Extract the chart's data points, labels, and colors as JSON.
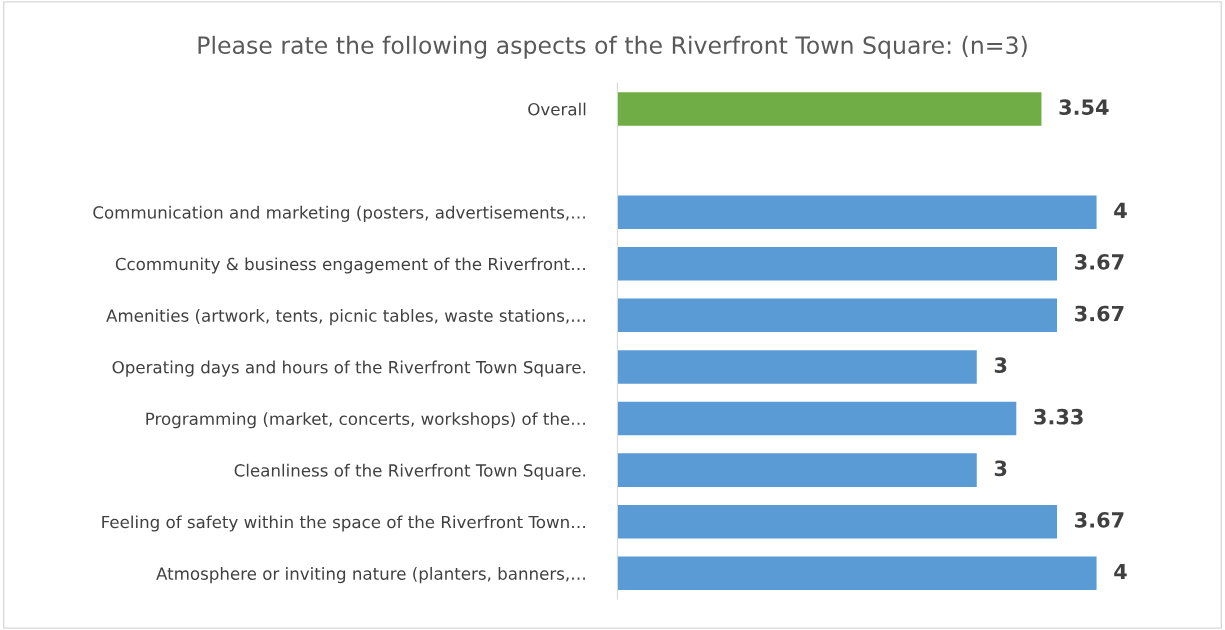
{
  "chart_data": {
    "type": "bar",
    "orientation": "horizontal",
    "title": "Please rate the following aspects of the Riverfront Town Square: (n=3)",
    "categories": [
      "Overall",
      null,
      "Communication and marketing (posters, advertisements,…",
      "Ccommunity & business engagement of the Riverfront…",
      "Amenities (artwork, tents, picnic tables, waste stations,…",
      "Operating days and hours of the Riverfront Town Square.",
      "Programming (market, concerts, workshops) of the…",
      "Cleanliness of the Riverfront Town Square.",
      "Feeling of safety within the space of the Riverfront Town…",
      "Atmosphere or inviting nature (planters, banners,…"
    ],
    "values": [
      3.54,
      null,
      4,
      3.67,
      3.67,
      3,
      3.33,
      3,
      3.67,
      4
    ],
    "colors": [
      "#70ad47",
      null,
      "#5b9bd5",
      "#5b9bd5",
      "#5b9bd5",
      "#5b9bd5",
      "#5b9bd5",
      "#5b9bd5",
      "#5b9bd5",
      "#5b9bd5"
    ],
    "data_labels": true,
    "tick_labels": "y"
  }
}
